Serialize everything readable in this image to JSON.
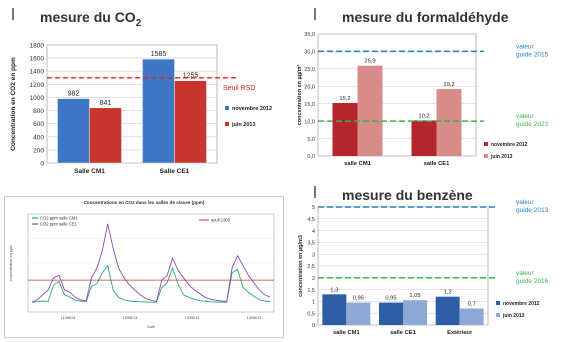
{
  "panels": {
    "co2": {
      "title_main": "mesure du CO",
      "title_sub": "2"
    },
    "formaldehyde": {
      "title": "mesure du formaldéhyde"
    },
    "benzene": {
      "title": "mesure du benzène"
    },
    "timeseries": {}
  },
  "colors": {
    "series_blue": "#3e78c4",
    "series_red": "#c8352e",
    "form_dark": "#b5262c",
    "form_light": "#d98b89",
    "benz_dark": "#2f5ea8",
    "benz_light": "#8fa9d6",
    "guide_blue": "#1f7fc6",
    "guide_green": "#3cb24a",
    "ts_green": "#2fa77d",
    "ts_purple": "#8a4ab6",
    "ts_thresh": "#c0392b"
  },
  "chart_data": [
    {
      "id": "co2",
      "type": "bar",
      "title": "mesure du CO2",
      "ylabel": "Concentration en CO2 en ppm",
      "categories": [
        "Salle CM1",
        "Salle CE1"
      ],
      "series": [
        {
          "name": "novembre 2012",
          "values": [
            982,
            1585
          ]
        },
        {
          "name": "juin 2013",
          "values": [
            841,
            1255
          ]
        }
      ],
      "data_labels": [
        [
          "982",
          "1585"
        ],
        [
          "841",
          "1255"
        ]
      ],
      "ylim": [
        0,
        1800
      ],
      "yticks": [
        0,
        200,
        400,
        600,
        800,
        1000,
        1200,
        1400,
        1600,
        1800
      ],
      "reference_line": {
        "label": "Seuil RSD",
        "value": 1300
      },
      "grid": true,
      "legend": "right"
    },
    {
      "id": "formaldehyde",
      "type": "bar",
      "title": "mesure du formaldéhyde",
      "ylabel": "concentration en µg/m³",
      "categories": [
        "salle CM1",
        "salle CE1"
      ],
      "series": [
        {
          "name": "novembre 2012",
          "values": [
            15.2,
            10.2
          ]
        },
        {
          "name": "juin 2013",
          "values": [
            25.9,
            19.2
          ]
        }
      ],
      "data_labels": [
        [
          "15,2",
          "10,2"
        ],
        [
          "25,9",
          "19,2"
        ]
      ],
      "ylim": [
        0,
        35
      ],
      "yticks": [
        "0,0",
        "5,0",
        "10,0",
        "15,0",
        "20,0",
        "25,0",
        "30,0",
        "35,0"
      ],
      "reference_lines": [
        {
          "label_line1": "valeur",
          "label_line2": "guide 2015",
          "value": 30
        },
        {
          "label_line1": "valeur",
          "label_line2": "guide 2023",
          "value": 10
        }
      ],
      "grid": true,
      "legend": "right"
    },
    {
      "id": "benzene",
      "type": "bar",
      "title": "mesure du benzène",
      "ylabel": "concentration en µg/m3",
      "categories": [
        "salle CM1",
        "salle CE1",
        "Extérieur"
      ],
      "series": [
        {
          "name": "novembre 2012",
          "values": [
            1.3,
            0.95,
            1.2
          ]
        },
        {
          "name": "juin 2013",
          "values": [
            0.95,
            1.05,
            0.7
          ]
        }
      ],
      "data_labels": [
        [
          "1,3",
          "0,95",
          "1,2"
        ],
        [
          "0,95",
          "1,05",
          "0,7"
        ]
      ],
      "ylim": [
        0,
        5
      ],
      "yticks": [
        "0",
        "0,5",
        "1",
        "1,5",
        "2",
        "2,5",
        "3",
        "3,5",
        "4",
        "4,5",
        "5"
      ],
      "reference_lines": [
        {
          "label_line1": "valeur",
          "label_line2": "guide 2013",
          "value": 5
        },
        {
          "label_line1": "valeur",
          "label_line2": "guide 2016",
          "value": 2
        }
      ],
      "grid": true,
      "legend": "right"
    },
    {
      "id": "timeseries",
      "type": "line",
      "title": "Concentrations en CO2 dans les salles de classe (ppm)",
      "xlabel": "Date",
      "ylabel": "concentration en ppm",
      "xticks": [
        "11/06/13",
        "12/06/13",
        "13/06/13",
        "14/06/13"
      ],
      "series": [
        {
          "name": "CO2 ppm salle CM1",
          "y": [
            400,
            420,
            450,
            430,
            1100,
            1250,
            700,
            600,
            480,
            440,
            430,
            1050,
            1150,
            1600,
            1900,
            900,
            600,
            500,
            450,
            430,
            420,
            410,
            400,
            400,
            1000,
            1200,
            1800,
            1150,
            700,
            600,
            520,
            460,
            440,
            420,
            410,
            400,
            400,
            1600,
            1750,
            1000,
            800,
            650,
            500,
            450,
            430
          ]
        },
        {
          "name": "CO2 ppm salle CE1",
          "y": [
            400,
            500,
            700,
            900,
            1400,
            1500,
            900,
            800,
            600,
            500,
            450,
            1400,
            1800,
            2500,
            3600,
            2600,
            1800,
            1400,
            1100,
            900,
            700,
            550,
            480,
            430,
            1300,
            1500,
            2200,
            1700,
            1400,
            1100,
            900,
            750,
            600,
            520,
            480,
            450,
            430,
            1800,
            2300,
            1900,
            1500,
            1200,
            900,
            700,
            600
          ]
        }
      ],
      "ylim": [
        0,
        4000
      ],
      "reference_line": {
        "label": "seuil 1300",
        "value": 1300
      },
      "grid": true,
      "legend": "top"
    }
  ]
}
